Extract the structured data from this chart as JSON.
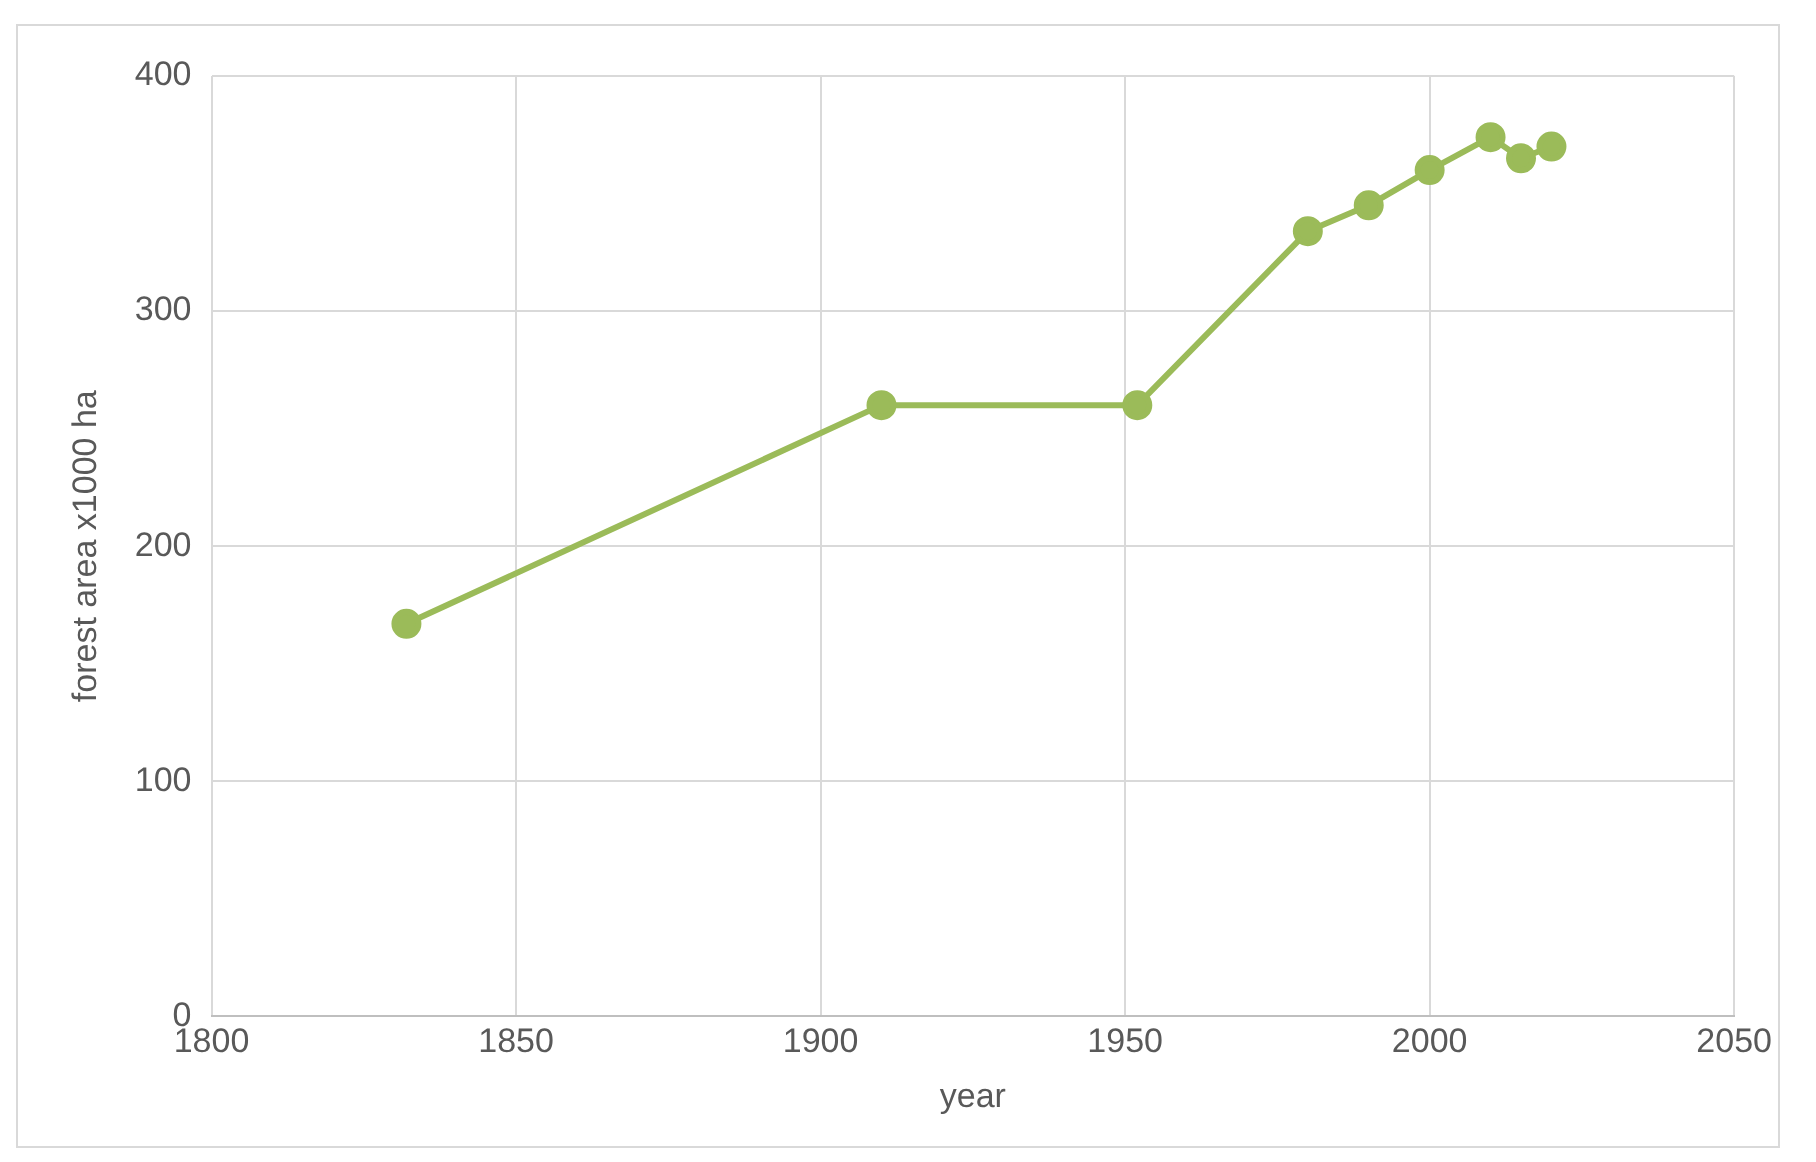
{
  "chart_data": {
    "type": "line",
    "xlabel": "year",
    "ylabel": "forest area x1000 ha",
    "x": [
      1832,
      1910,
      1952,
      1980,
      1990,
      2000,
      2010,
      2015,
      2020
    ],
    "series": [
      {
        "color": "#9bbb59",
        "values": [
          167,
          260,
          260,
          334,
          345,
          360,
          374,
          365,
          370
        ]
      }
    ],
    "xlim": [
      1800,
      2050
    ],
    "xticks": [
      1800,
      1850,
      1900,
      1950,
      2000,
      2050
    ],
    "ylim": [
      0,
      400
    ],
    "yticks": [
      0,
      100,
      200,
      300,
      400
    ],
    "grid": true,
    "legend": false,
    "marker": "circle",
    "line_style": "solid"
  }
}
